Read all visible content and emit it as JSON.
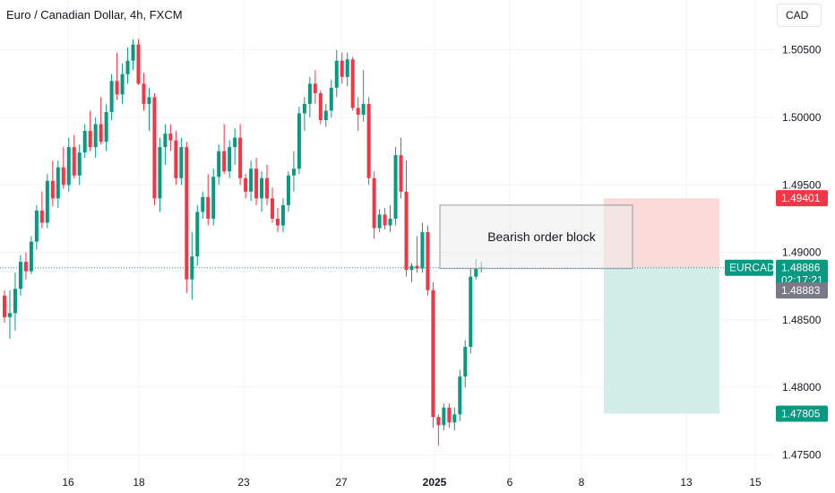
{
  "header": {
    "title": "Euro / Canadian Dollar, 4h, FXCM",
    "currency_button": "CAD"
  },
  "annotations": {
    "order_block_label": "Bearish order block"
  },
  "price_labels": {
    "symbol": "EURCAD",
    "last_price": "1.48886",
    "countdown": "02:17:21",
    "bid_price": "1.48883",
    "stop_price": "1.49401",
    "target_price": "1.47805"
  },
  "colors": {
    "up": "#089981",
    "down": "#f23645",
    "profit_zone": "#d3ede8",
    "loss_zone": "#fbdbd9",
    "order_block": "#ececec",
    "grid": "#f2f3f5"
  },
  "chart_data": {
    "type": "candlestick",
    "title": "Euro / Canadian Dollar, 4h, FXCM",
    "symbol": "EURCAD",
    "y_ticks": [
      "1.50500",
      "1.50000",
      "1.49500",
      "1.49000",
      "1.48500",
      "1.48000",
      "1.47500"
    ],
    "ylim": [
      1.4735,
      1.5087
    ],
    "x_ticks": [
      "16",
      "18",
      "23",
      "27",
      "2025",
      "6",
      "8",
      "13",
      "15"
    ],
    "grid": true,
    "position": {
      "side": "short",
      "entry": 1.48886,
      "stop": 1.49401,
      "target": 1.47805
    },
    "order_block": {
      "label": "Bearish order block",
      "low": 1.4888,
      "high": 1.4935
    },
    "candles": [
      [
        1.4868,
        1.4872,
        1.4848,
        1.4852
      ],
      [
        1.4852,
        1.4872,
        1.4836,
        1.4855
      ],
      [
        1.4855,
        1.4885,
        1.4842,
        1.4873
      ],
      [
        1.4873,
        1.4898,
        1.4868,
        1.4893
      ],
      [
        1.4893,
        1.49,
        1.488,
        1.4886
      ],
      [
        1.4886,
        1.4912,
        1.4884,
        1.4908
      ],
      [
        1.4908,
        1.4935,
        1.4902,
        1.4931
      ],
      [
        1.4931,
        1.4945,
        1.4918,
        1.4922
      ],
      [
        1.4922,
        1.4958,
        1.4918,
        1.4953
      ],
      [
        1.4953,
        1.4968,
        1.4934,
        1.494
      ],
      [
        1.494,
        1.4968,
        1.4933,
        1.4963
      ],
      [
        1.4963,
        1.4978,
        1.4947,
        1.495
      ],
      [
        1.495,
        1.4985,
        1.4945,
        1.4978
      ],
      [
        1.4978,
        1.4987,
        1.4955,
        1.4957
      ],
      [
        1.4957,
        1.498,
        1.495,
        1.4974
      ],
      [
        1.4974,
        1.4995,
        1.497,
        1.499
      ],
      [
        1.499,
        1.5005,
        1.4975,
        1.4978
      ],
      [
        1.4978,
        1.5,
        1.497,
        1.4995
      ],
      [
        1.4995,
        1.5015,
        1.498,
        1.4982
      ],
      [
        1.4982,
        1.501,
        1.4975,
        1.5004
      ],
      [
        1.5004,
        1.5032,
        1.4998,
        1.5027
      ],
      [
        1.5027,
        1.5048,
        1.5013,
        1.5017
      ],
      [
        1.5017,
        1.504,
        1.501,
        1.5032
      ],
      [
        1.5032,
        1.5052,
        1.5025,
        1.5042
      ],
      [
        1.5042,
        1.5058,
        1.5035,
        1.5054
      ],
      [
        1.5054,
        1.5058,
        1.5024,
        1.5025
      ],
      [
        1.5025,
        1.5033,
        1.5005,
        1.501
      ],
      [
        1.501,
        1.5022,
        1.499,
        1.5015
      ],
      [
        1.5015,
        1.5018,
        1.4935,
        1.494
      ],
      [
        1.494,
        1.4985,
        1.493,
        1.4978
      ],
      [
        1.4978,
        1.4995,
        1.4965,
        1.4988
      ],
      [
        1.4988,
        1.4995,
        1.4975,
        1.4983
      ],
      [
        1.4983,
        1.499,
        1.495,
        1.4955
      ],
      [
        1.4955,
        1.4985,
        1.495,
        1.4978
      ],
      [
        1.4978,
        1.4982,
        1.487,
        1.488
      ],
      [
        1.488,
        1.4915,
        1.4865,
        1.4897
      ],
      [
        1.4897,
        1.4935,
        1.489,
        1.493
      ],
      [
        1.493,
        1.4945,
        1.4925,
        1.4941
      ],
      [
        1.4941,
        1.4958,
        1.492,
        1.4925
      ],
      [
        1.4925,
        1.4962,
        1.492,
        1.4956
      ],
      [
        1.4956,
        1.498,
        1.495,
        1.4975
      ],
      [
        1.4975,
        1.4995,
        1.4958,
        1.496
      ],
      [
        1.496,
        1.4983,
        1.4955,
        1.4978
      ],
      [
        1.4978,
        1.4992,
        1.4965,
        1.4985
      ],
      [
        1.4985,
        1.4995,
        1.495,
        1.4955
      ],
      [
        1.4955,
        1.4958,
        1.494,
        1.4945
      ],
      [
        1.4945,
        1.4968,
        1.4938,
        1.4962
      ],
      [
        1.4962,
        1.497,
        1.4935,
        1.494
      ],
      [
        1.494,
        1.496,
        1.493,
        1.4955
      ],
      [
        1.4955,
        1.4965,
        1.4935,
        1.494
      ],
      [
        1.494,
        1.4948,
        1.4922,
        1.4925
      ],
      [
        1.4925,
        1.4933,
        1.4915,
        1.492
      ],
      [
        1.492,
        1.494,
        1.4915,
        1.4935
      ],
      [
        1.4935,
        1.496,
        1.493,
        1.4957
      ],
      [
        1.4957,
        1.4975,
        1.4945,
        1.4962
      ],
      [
        1.4962,
        1.5008,
        1.4958,
        1.5003
      ],
      [
        1.5003,
        1.5015,
        1.499,
        1.501
      ],
      [
        1.501,
        1.503,
        1.5,
        1.5025
      ],
      [
        1.5025,
        1.5035,
        1.501,
        1.5018
      ],
      [
        1.5018,
        1.502,
        1.4995,
        1.4998
      ],
      [
        1.4998,
        1.501,
        1.4993,
        1.5005
      ],
      [
        1.5005,
        1.5028,
        1.5,
        1.5022
      ],
      [
        1.5022,
        1.505,
        1.5015,
        1.5042
      ],
      [
        1.5042,
        1.5048,
        1.5025,
        1.503
      ],
      [
        1.503,
        1.5048,
        1.5023,
        1.5043
      ],
      [
        1.5043,
        1.5045,
        1.5005,
        1.5007
      ],
      [
        1.5007,
        1.5015,
        1.499,
        1.5002
      ],
      [
        1.5002,
        1.5035,
        1.4997,
        1.501
      ],
      [
        1.501,
        1.5015,
        1.495,
        1.4955
      ],
      [
        1.4955,
        1.496,
        1.491,
        1.4918
      ],
      [
        1.4918,
        1.4932,
        1.4915,
        1.4928
      ],
      [
        1.4928,
        1.4933,
        1.4917,
        1.492
      ],
      [
        1.492,
        1.4935,
        1.4915,
        1.4925
      ],
      [
        1.4925,
        1.4978,
        1.492,
        1.4972
      ],
      [
        1.4972,
        1.4985,
        1.494,
        1.4945
      ],
      [
        1.4945,
        1.4968,
        1.4882,
        1.4887
      ],
      [
        1.4887,
        1.4892,
        1.4878,
        1.489
      ],
      [
        1.489,
        1.4912,
        1.4885,
        1.4888
      ],
      [
        1.4888,
        1.4922,
        1.4885,
        1.4915
      ],
      [
        1.4915,
        1.492,
        1.4868,
        1.4872
      ],
      [
        1.4872,
        1.4878,
        1.477,
        1.4778
      ],
      [
        1.4778,
        1.478,
        1.4757,
        1.4772
      ],
      [
        1.4772,
        1.4788,
        1.4768,
        1.4785
      ],
      [
        1.4785,
        1.4788,
        1.477,
        1.4774
      ],
      [
        1.4774,
        1.4785,
        1.4768,
        1.478
      ],
      [
        1.478,
        1.4813,
        1.4775,
        1.4808
      ],
      [
        1.4808,
        1.4835,
        1.48,
        1.483
      ],
      [
        1.483,
        1.4888,
        1.4825,
        1.4882
      ],
      [
        1.4882,
        1.4895,
        1.488,
        1.4888
      ],
      [
        1.4888,
        1.4893,
        1.4885,
        1.4889
      ]
    ]
  }
}
